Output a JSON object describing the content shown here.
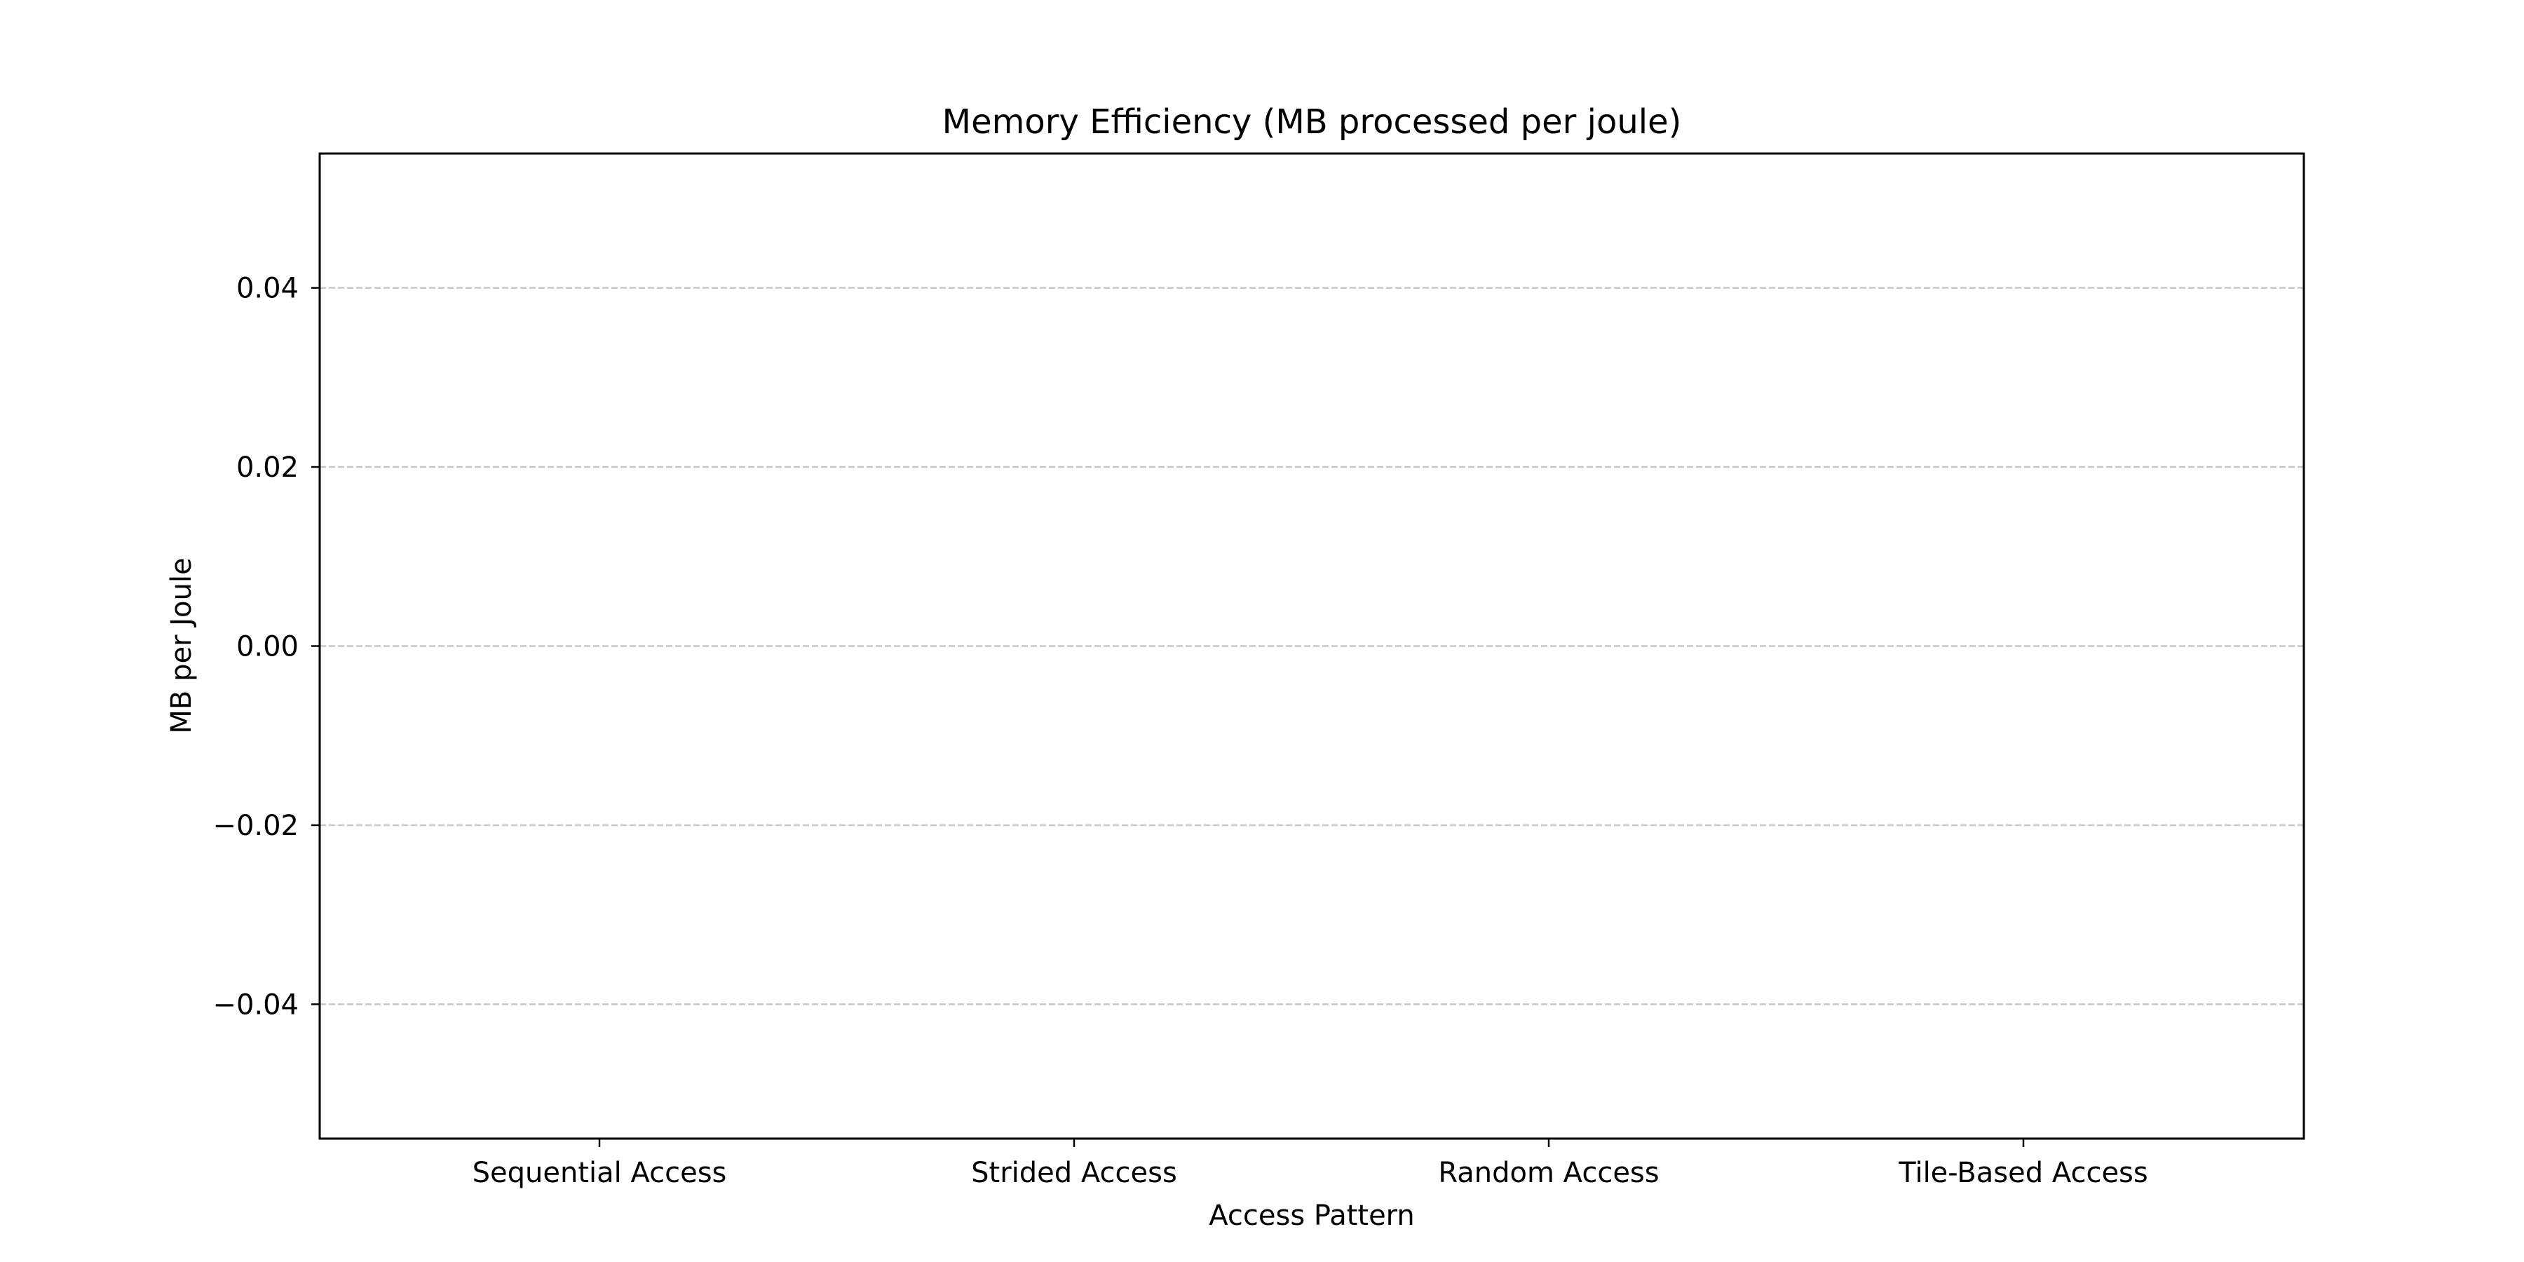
{
  "chart_data": {
    "type": "bar",
    "title": "Memory Efficiency (MB processed per joule)",
    "xlabel": "Access Pattern",
    "ylabel": "MB per Joule",
    "categories": [
      "Sequential Access",
      "Strided Access",
      "Random Access",
      "Tile-Based Access"
    ],
    "values": [
      null,
      null,
      null,
      null
    ],
    "ylim": [
      -0.055,
      0.055
    ],
    "yticks": [
      -0.04,
      -0.02,
      0.0,
      0.02,
      0.04
    ],
    "ytick_labels": [
      "−0.04",
      "−0.02",
      "0.00",
      "0.02",
      "0.04"
    ],
    "grid": "y-dashed",
    "colors": {
      "grid": "#b0b0b0",
      "axes": "#000000",
      "bar": "#1f77b4"
    }
  }
}
